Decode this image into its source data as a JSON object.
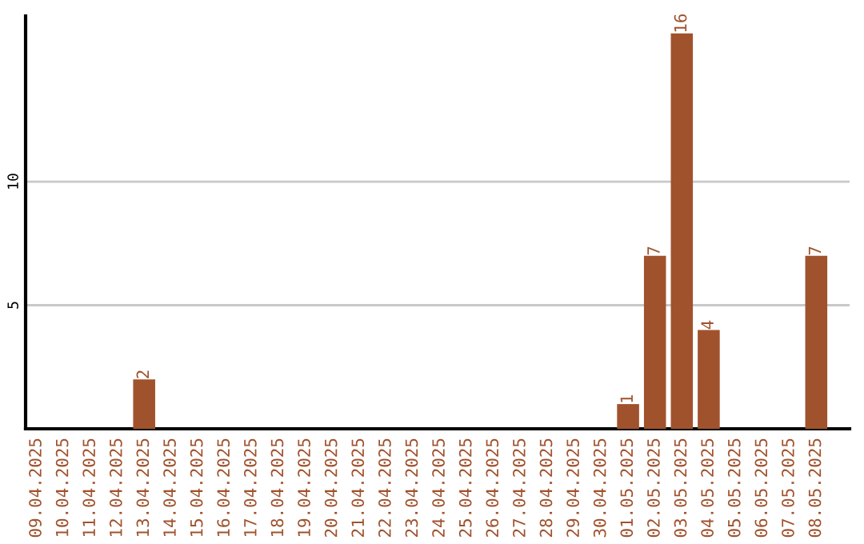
{
  "chart_data": {
    "type": "bar",
    "categories": [
      "09.04.2025",
      "10.04.2025",
      "11.04.2025",
      "12.04.2025",
      "13.04.2025",
      "14.04.2025",
      "15.04.2025",
      "16.04.2025",
      "17.04.2025",
      "18.04.2025",
      "19.04.2025",
      "20.04.2025",
      "21.04.2025",
      "22.04.2025",
      "23.04.2025",
      "24.04.2025",
      "25.04.2025",
      "26.04.2025",
      "27.04.2025",
      "28.04.2025",
      "29.04.2025",
      "30.04.2025",
      "01.05.2025",
      "02.05.2025",
      "03.05.2025",
      "04.05.2025",
      "05.05.2025",
      "06.05.2025",
      "07.05.2025",
      "08.05.2025"
    ],
    "values": [
      0,
      0,
      0,
      0,
      2,
      0,
      0,
      0,
      0,
      0,
      0,
      0,
      0,
      0,
      0,
      0,
      0,
      0,
      0,
      0,
      0,
      0,
      1,
      7,
      16,
      4,
      0,
      0,
      0,
      7
    ],
    "value_labels": [
      null,
      null,
      null,
      null,
      "2",
      null,
      null,
      null,
      null,
      null,
      null,
      null,
      null,
      null,
      null,
      null,
      null,
      null,
      null,
      null,
      null,
      null,
      "1",
      "7",
      "16",
      "4",
      null,
      null,
      null,
      "7"
    ],
    "color": "#a0522d",
    "ylim": [
      0,
      16.7
    ],
    "yticks": [
      5,
      10
    ],
    "grid": "y",
    "legend": false
  }
}
